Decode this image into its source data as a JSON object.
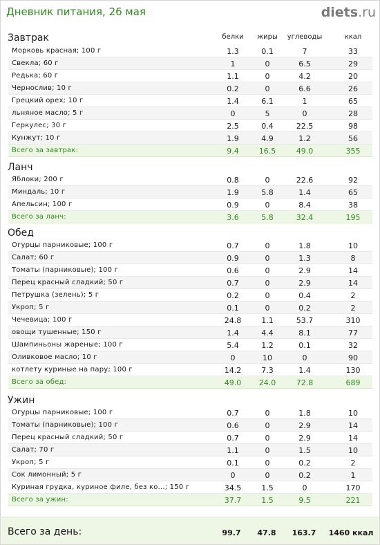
{
  "header": {
    "title": "Дневник питания, 26 мая",
    "logo_main": "diets",
    "logo_tld": ".ru"
  },
  "columns": {
    "protein": "белки",
    "fat": "жиры",
    "carbs": "углеводы",
    "kcal": "ккал"
  },
  "meals": [
    {
      "title": "Завтрак",
      "items": [
        {
          "name": "Морковь красная; 100 г",
          "protein": "1.3",
          "fat": "0.1",
          "carbs": "7",
          "kcal": "33"
        },
        {
          "name": "Свекла; 60 г",
          "protein": "1",
          "fat": "0",
          "carbs": "6.5",
          "kcal": "29"
        },
        {
          "name": "Редька; 60 г",
          "protein": "1.1",
          "fat": "0",
          "carbs": "4.2",
          "kcal": "20"
        },
        {
          "name": "Чернослив; 10 г",
          "protein": "0.2",
          "fat": "0",
          "carbs": "6.6",
          "kcal": "26"
        },
        {
          "name": "Грецкий орех; 10 г",
          "protein": "1.4",
          "fat": "6.1",
          "carbs": "1",
          "kcal": "65"
        },
        {
          "name": "льняное масло; 5 г",
          "protein": "0",
          "fat": "5",
          "carbs": "0",
          "kcal": "28"
        },
        {
          "name": "Геркулес; 30 г",
          "protein": "2.5",
          "fat": "0.4",
          "carbs": "22.5",
          "kcal": "98"
        },
        {
          "name": "Кунжут; 10 г",
          "protein": "1.9",
          "fat": "4.9",
          "carbs": "1.2",
          "kcal": "56"
        }
      ],
      "total": {
        "name": "Всего за завтрак:",
        "protein": "9.4",
        "fat": "16.5",
        "carbs": "49.0",
        "kcal": "355"
      }
    },
    {
      "title": "Ланч",
      "items": [
        {
          "name": "Яблоки; 200 г",
          "protein": "0.8",
          "fat": "0",
          "carbs": "22.6",
          "kcal": "92"
        },
        {
          "name": "Миндаль; 10 г",
          "protein": "1.9",
          "fat": "5.8",
          "carbs": "1.4",
          "kcal": "65"
        },
        {
          "name": "Апельсин; 100 г",
          "protein": "0.9",
          "fat": "0",
          "carbs": "8.4",
          "kcal": "38"
        }
      ],
      "total": {
        "name": "Всего за ланч:",
        "protein": "3.6",
        "fat": "5.8",
        "carbs": "32.4",
        "kcal": "195"
      }
    },
    {
      "title": "Обед",
      "items": [
        {
          "name": "Огурцы парниковые; 100 г",
          "protein": "0.7",
          "fat": "0",
          "carbs": "1.8",
          "kcal": "10"
        },
        {
          "name": "Салат; 60 г",
          "protein": "0.9",
          "fat": "0",
          "carbs": "1.3",
          "kcal": "8"
        },
        {
          "name": "Томаты (парниковые); 100 г",
          "protein": "0.6",
          "fat": "0",
          "carbs": "2.9",
          "kcal": "14"
        },
        {
          "name": "Перец красный сладкий; 50 г",
          "protein": "0.7",
          "fat": "0",
          "carbs": "2.9",
          "kcal": "14"
        },
        {
          "name": "Петрушка (зелень); 5 г",
          "protein": "0.2",
          "fat": "0",
          "carbs": "0.4",
          "kcal": "2"
        },
        {
          "name": "Укроп; 5 г",
          "protein": "0.1",
          "fat": "0",
          "carbs": "0.2",
          "kcal": "2"
        },
        {
          "name": "Чечевица; 100 г",
          "protein": "24.8",
          "fat": "1.1",
          "carbs": "53.7",
          "kcal": "310"
        },
        {
          "name": "овощи тушенные; 150 г",
          "protein": "1.4",
          "fat": "4.4",
          "carbs": "8.1",
          "kcal": "77"
        },
        {
          "name": "Шампиньоны жареные; 100 г",
          "protein": "5.4",
          "fat": "1.2",
          "carbs": "0.1",
          "kcal": "32"
        },
        {
          "name": "Оливковое масло; 10 г",
          "protein": "0",
          "fat": "10",
          "carbs": "0",
          "kcal": "90"
        },
        {
          "name": "котлету куриные на пару; 100 г",
          "protein": "14.2",
          "fat": "7.3",
          "carbs": "1.4",
          "kcal": "130"
        }
      ],
      "total": {
        "name": "Всего за обед:",
        "protein": "49.0",
        "fat": "24.0",
        "carbs": "72.8",
        "kcal": "689"
      }
    },
    {
      "title": "Ужин",
      "items": [
        {
          "name": "Огурцы парниковые; 100 г",
          "protein": "0.7",
          "fat": "0",
          "carbs": "1.8",
          "kcal": "10"
        },
        {
          "name": "Томаты (парниковые); 100 г",
          "protein": "0.6",
          "fat": "0",
          "carbs": "2.9",
          "kcal": "14"
        },
        {
          "name": "Перец красный сладкий; 50 г",
          "protein": "0.7",
          "fat": "0",
          "carbs": "2.9",
          "kcal": "14"
        },
        {
          "name": "Салат; 70 г",
          "protein": "1.1",
          "fat": "0",
          "carbs": "1.5",
          "kcal": "10"
        },
        {
          "name": "Укроп; 5 г",
          "protein": "0.1",
          "fat": "0",
          "carbs": "0.2",
          "kcal": "2"
        },
        {
          "name": "Сок лимонный; 5 г",
          "protein": "0",
          "fat": "0",
          "carbs": "0.2",
          "kcal": "1"
        },
        {
          "name": "Куриная грудка, куриное филе, без ко...; 150 г",
          "protein": "34.5",
          "fat": "1.5",
          "carbs": "0",
          "kcal": "170"
        }
      ],
      "total": {
        "name": "Всего за ужин:",
        "protein": "37.7",
        "fat": "1.5",
        "carbs": "9.5",
        "kcal": "221"
      }
    }
  ],
  "day_total": {
    "label": "Всего за день:",
    "protein": "99.7",
    "fat": "47.8",
    "carbs": "163.7",
    "kcal": "1460 ккал"
  },
  "colors": {
    "accent_green": "#2f8a1f",
    "total_row_bg": "#eef6e6",
    "logo_gray": "#7a7a7a"
  }
}
